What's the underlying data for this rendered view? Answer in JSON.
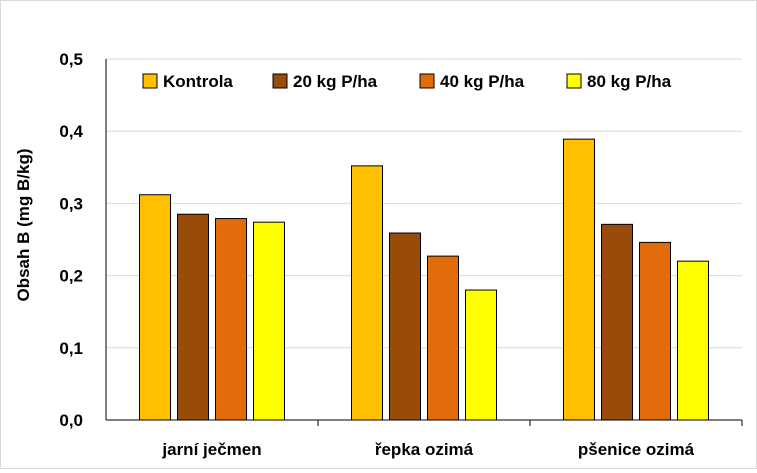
{
  "chart_data": {
    "type": "bar",
    "title": "",
    "xlabel": "",
    "ylabel": "Obsah B (mg B/kg)",
    "ylim": [
      0,
      0.5
    ],
    "yticks": [
      "0,0",
      "0,1",
      "0,2",
      "0,3",
      "0,4",
      "0,5"
    ],
    "grid": true,
    "legend_position": "top",
    "categories": [
      "jarní ječmen",
      "řepka ozimá",
      "pšenice ozimá"
    ],
    "series": [
      {
        "name": "Kontrola",
        "color": "#FFC000",
        "values": [
          0.312,
          0.352,
          0.389
        ]
      },
      {
        "name": "20 kg P/ha",
        "color": "#994B0A",
        "values": [
          0.285,
          0.259,
          0.271
        ]
      },
      {
        "name": "40 kg P/ha",
        "color": "#E36C0A",
        "values": [
          0.279,
          0.227,
          0.246
        ]
      },
      {
        "name": "80 kg P/ha",
        "color": "#FFFF00",
        "values": [
          0.274,
          0.18,
          0.22
        ]
      }
    ]
  }
}
